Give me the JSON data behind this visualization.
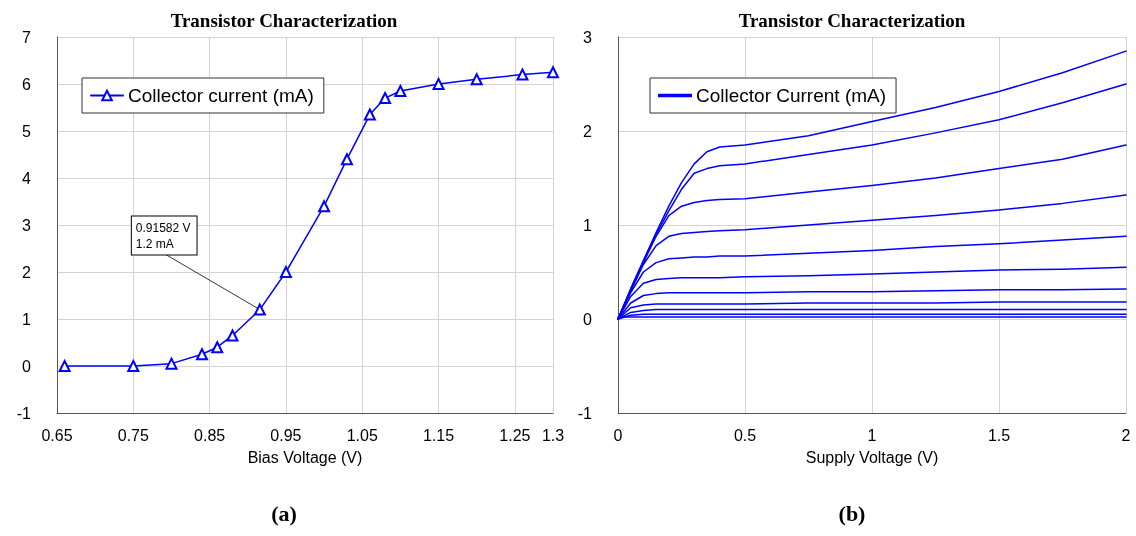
{
  "chart_data": [
    {
      "type": "line",
      "title": "Transistor Characterization",
      "xlabel": "Bias Voltage (V)",
      "marker": "triangle",
      "line_style": "solid",
      "grid": true,
      "legend": "top left",
      "xlim": [
        0.65,
        1.3
      ],
      "xticks": [
        0.65,
        0.75,
        0.85,
        0.95,
        1.05,
        1.15,
        1.25,
        1.3
      ],
      "ylim": [
        -1,
        7
      ],
      "yticks": [
        -1,
        0,
        1,
        2,
        3,
        4,
        5,
        6,
        7
      ],
      "x": [
        0.66,
        0.75,
        0.8,
        0.84,
        0.86,
        0.88,
        0.91582,
        0.95,
        1.0,
        1.03,
        1.06,
        1.08,
        1.1,
        1.15,
        1.2,
        1.26,
        1.3
      ],
      "series": [
        {
          "name": "Collector current (mA)",
          "color": "#0000ff",
          "values": [
            0.0,
            0.0,
            0.05,
            0.25,
            0.4,
            0.65,
            1.2,
            2.0,
            3.4,
            4.4,
            5.35,
            5.7,
            5.85,
            6.0,
            6.1,
            6.2,
            6.25
          ]
        }
      ],
      "annotations": [
        {
          "text": "0.91582 V\n1.2 mA",
          "x": 0.91582,
          "y": 1.2
        },
        "(a)"
      ]
    },
    {
      "type": "line",
      "title": "Transistor Characterization",
      "xlabel": "Supply Voltage (V)",
      "marker": "none",
      "line_style": "solid",
      "grid": true,
      "legend": "top left",
      "xlim": [
        0,
        2
      ],
      "xticks": [
        0,
        0.5,
        1,
        1.5,
        2
      ],
      "ylim": [
        -1,
        3
      ],
      "yticks": [
        -1,
        0,
        1,
        2,
        3
      ],
      "x": [
        0,
        0.05,
        0.1,
        0.15,
        0.2,
        0.25,
        0.3,
        0.35,
        0.4,
        0.5,
        0.75,
        1,
        1.25,
        1.5,
        1.75,
        2
      ],
      "series": [
        {
          "name": "Collector Current (mA)",
          "color": "#0000ff",
          "values": [
            0,
            0.32,
            0.62,
            0.92,
            1.2,
            1.45,
            1.65,
            1.78,
            1.83,
            1.85,
            1.95,
            2.1,
            2.25,
            2.42,
            2.62,
            2.85
          ]
        },
        {
          "color": "#0000ff",
          "values": [
            0,
            0.32,
            0.62,
            0.9,
            1.15,
            1.38,
            1.55,
            1.6,
            1.63,
            1.65,
            1.75,
            1.85,
            1.98,
            2.12,
            2.3,
            2.5
          ]
        },
        {
          "color": "#0000ff",
          "values": [
            0,
            0.3,
            0.6,
            0.88,
            1.1,
            1.2,
            1.24,
            1.26,
            1.27,
            1.28,
            1.35,
            1.42,
            1.5,
            1.6,
            1.7,
            1.85
          ]
        },
        {
          "color": "#0000ff",
          "values": [
            0,
            0.3,
            0.58,
            0.78,
            0.88,
            0.91,
            0.92,
            0.93,
            0.94,
            0.95,
            1.0,
            1.05,
            1.1,
            1.16,
            1.23,
            1.32
          ]
        },
        {
          "color": "#0000ff",
          "values": [
            0,
            0.28,
            0.5,
            0.6,
            0.64,
            0.65,
            0.66,
            0.66,
            0.67,
            0.67,
            0.7,
            0.73,
            0.77,
            0.8,
            0.84,
            0.88
          ]
        },
        {
          "color": "#0000ff",
          "values": [
            0,
            0.24,
            0.38,
            0.42,
            0.43,
            0.44,
            0.44,
            0.44,
            0.44,
            0.45,
            0.46,
            0.48,
            0.5,
            0.52,
            0.53,
            0.55
          ]
        },
        {
          "color": "#0000ff",
          "values": [
            0,
            0.17,
            0.25,
            0.27,
            0.28,
            0.28,
            0.28,
            0.28,
            0.28,
            0.28,
            0.29,
            0.29,
            0.3,
            0.31,
            0.31,
            0.32
          ]
        },
        {
          "color": "#0000ff",
          "values": [
            0,
            0.12,
            0.15,
            0.16,
            0.16,
            0.16,
            0.16,
            0.16,
            0.16,
            0.16,
            0.17,
            0.17,
            0.17,
            0.18,
            0.18,
            0.18
          ]
        },
        {
          "color": "#0000ff",
          "values": [
            0,
            0.07,
            0.09,
            0.1,
            0.1,
            0.1,
            0.1,
            0.1,
            0.1,
            0.1,
            0.1,
            0.1,
            0.1,
            0.1,
            0.1,
            0.1
          ]
        },
        {
          "color": "#0000ff",
          "values": [
            0,
            0.04,
            0.05,
            0.05,
            0.05,
            0.05,
            0.05,
            0.05,
            0.05,
            0.05,
            0.05,
            0.05,
            0.05,
            0.05,
            0.05,
            0.05
          ]
        },
        {
          "color": "#0000ff",
          "values": [
            0.02,
            0.02,
            0.02,
            0.02,
            0.02,
            0.02,
            0.02,
            0.02,
            0.02,
            0.02,
            0.02,
            0.02,
            0.02,
            0.02,
            0.02,
            0.02
          ]
        }
      ],
      "annotations": [
        "(b)"
      ]
    }
  ]
}
